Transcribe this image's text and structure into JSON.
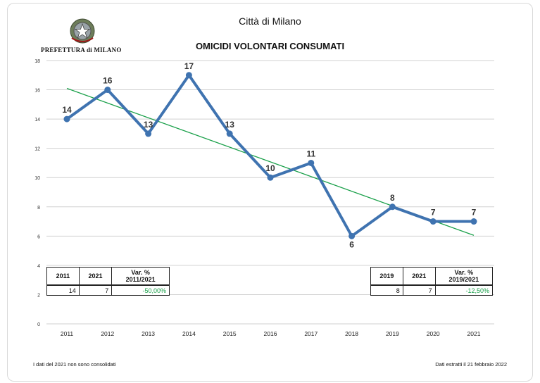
{
  "header": {
    "city": "Città di Milano",
    "org": "PREFETTURA di MILANO",
    "emblem_icon": "italian-republic-emblem"
  },
  "footer": {
    "left": "I dati del 2021 non sono consolidati",
    "right": "Dati estratti il 21 febbraio 2022"
  },
  "colors": {
    "line": "#3f73b0",
    "trend": "#1aa04a",
    "grid": "#d0d0d0",
    "pct_text": "#1aa04a"
  },
  "tables": {
    "left": {
      "col1": "2011",
      "col2": "2021",
      "col3": "Var. % 2011/2021",
      "v1": "14",
      "v2": "7",
      "v3": "-50,00%"
    },
    "right": {
      "col1": "2019",
      "col2": "2021",
      "col3": "Var. % 2019/2021",
      "v1": "8",
      "v2": "7",
      "v3": "-12,50%"
    }
  },
  "chart_data": {
    "type": "line",
    "title": "OMICIDI VOLONTARI CONSUMATI",
    "xlabel": "",
    "ylabel": "",
    "categories": [
      "2011",
      "2012",
      "2013",
      "2014",
      "2015",
      "2016",
      "2017",
      "2018",
      "2019",
      "2020",
      "2021"
    ],
    "series": [
      {
        "values": [
          14,
          16,
          13,
          17,
          13,
          10,
          11,
          6,
          8,
          7,
          7
        ]
      }
    ],
    "trendline": {
      "start": 16.1,
      "end": 6.05
    },
    "yticks": [
      0,
      2,
      4,
      6,
      8,
      10,
      12,
      14,
      16,
      18
    ],
    "ylim": [
      0,
      18
    ],
    "grid": true,
    "data_labels": true,
    "legend": "none"
  }
}
